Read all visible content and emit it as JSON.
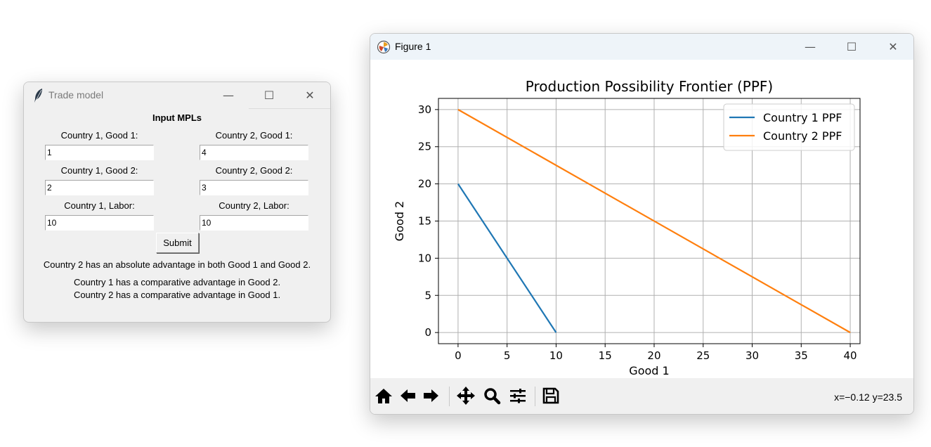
{
  "trade_window": {
    "title": "Trade model",
    "controls": {
      "minimize": "—",
      "maximize": "☐",
      "close": "✕"
    },
    "header": "Input MPLs",
    "fields": {
      "c1_good1": {
        "label": "Country 1, Good 1:",
        "value": "1"
      },
      "c2_good1": {
        "label": "Country 2, Good 1:",
        "value": "4"
      },
      "c1_good2": {
        "label": "Country 1, Good 2:",
        "value": "2"
      },
      "c2_good2": {
        "label": "Country 2, Good 2:",
        "value": "3"
      },
      "c1_labor": {
        "label": "Country 1, Labor:",
        "value": "10"
      },
      "c2_labor": {
        "label": "Country 2, Labor:",
        "value": "10"
      }
    },
    "submit_label": "Submit",
    "results": {
      "absolute": "Country 2 has an absolute advantage in both Good 1 and Good 2.",
      "comparative_1": "Country 1 has a comparative advantage in Good 2.",
      "comparative_2": "Country 2 has a comparative advantage in Good 1."
    }
  },
  "figure_window": {
    "title": "Figure 1",
    "controls": {
      "minimize": "—",
      "maximize": "☐",
      "close": "✕"
    },
    "toolbar": {
      "icons": [
        "home-icon",
        "back-icon",
        "forward-icon",
        "pan-icon",
        "zoom-icon",
        "configure-subplots-icon",
        "save-icon"
      ],
      "coords": "x=−0.12 y=23.5"
    }
  },
  "chart_data": {
    "type": "line",
    "title": "Production Possibility Frontier (PPF)",
    "xlabel": "Good 1",
    "ylabel": "Good 2",
    "xlim": [
      -2,
      41
    ],
    "ylim": [
      -1.5,
      31.5
    ],
    "xticks": [
      0,
      5,
      10,
      15,
      20,
      25,
      30,
      35,
      40
    ],
    "yticks": [
      0,
      5,
      10,
      15,
      20,
      25,
      30
    ],
    "grid": true,
    "legend_position": "top-right",
    "series": [
      {
        "name": "Country 1 PPF",
        "color": "#1f77b4",
        "x": [
          0,
          10
        ],
        "y": [
          20,
          0
        ]
      },
      {
        "name": "Country 2 PPF",
        "color": "#ff7f0e",
        "x": [
          0,
          40
        ],
        "y": [
          30,
          0
        ]
      }
    ]
  }
}
